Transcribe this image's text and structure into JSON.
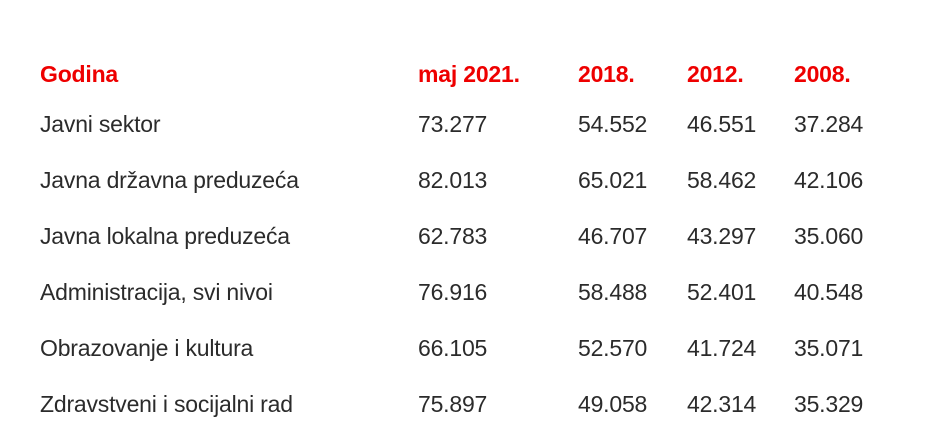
{
  "table": {
    "headers": [
      "Godina",
      "maj 2021.",
      "2018.",
      "2012.",
      "2008."
    ],
    "rows": [
      {
        "label": "Javni sektor",
        "values": [
          "73.277",
          "54.552",
          "46.551",
          "37.284"
        ]
      },
      {
        "label": "Javna državna preduzeća",
        "values": [
          "82.013",
          "65.021",
          "58.462",
          "42.106"
        ]
      },
      {
        "label": "Javna lokalna preduzeća",
        "values": [
          "62.783",
          "46.707",
          "43.297",
          "35.060"
        ]
      },
      {
        "label": "Administracija, svi nivoi",
        "values": [
          "76.916",
          "58.488",
          "52.401",
          "40.548"
        ]
      },
      {
        "label": "Obrazovanje i kultura",
        "values": [
          "66.105",
          "52.570",
          "41.724",
          "35.071"
        ]
      },
      {
        "label": "Zdravstveni i socijalni rad",
        "values": [
          "75.897",
          "49.058",
          "42.314",
          "35.329"
        ]
      }
    ]
  },
  "colors": {
    "header": "#ee0000",
    "body_text": "#2b2b2b",
    "background": "#ffffff"
  }
}
